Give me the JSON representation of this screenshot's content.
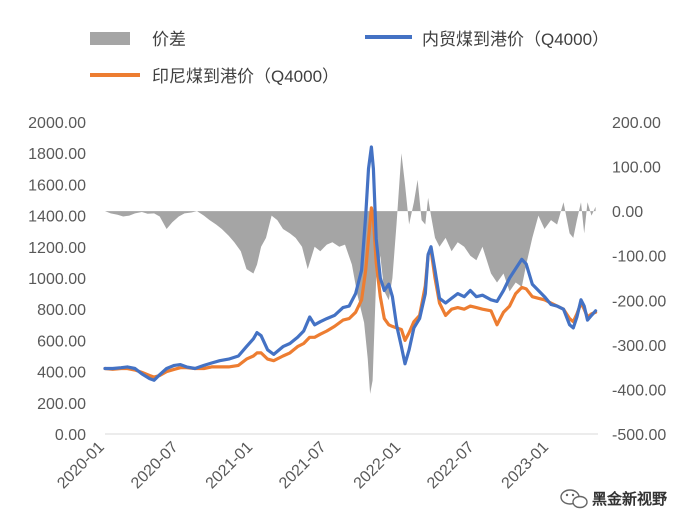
{
  "chart_data": {
    "type": "line",
    "legend": [
      {
        "name": "价差",
        "kind": "area",
        "color": "#a5a5a5"
      },
      {
        "name": "内贸煤到港价（Q4000）",
        "kind": "line",
        "color": "#4472c4"
      },
      {
        "name": "印尼煤到港价（Q4000）",
        "kind": "line",
        "color": "#ed7d31"
      }
    ],
    "left_axis": {
      "ylim": [
        0,
        2000
      ],
      "ticks": [
        "0.00",
        "200.00",
        "400.00",
        "600.00",
        "800.00",
        "1000.00",
        "1200.00",
        "1400.00",
        "1600.00",
        "1800.00",
        "2000.00"
      ]
    },
    "right_axis": {
      "ylim": [
        -500,
        200
      ],
      "ticks": [
        "-500.00",
        "-400.00",
        "-300.00",
        "-200.00",
        "-100.00",
        "0.00",
        "100.00",
        "200.00"
      ]
    },
    "x_axis": {
      "range": [
        "2020-01",
        "2023-05"
      ],
      "ticks": [
        "2020-01",
        "2020-07",
        "2021-01",
        "2021-07",
        "2022-01",
        "2022-07",
        "2023-01"
      ]
    },
    "series": [
      {
        "name": "内贸煤到港价（Q4000）",
        "axis": "left",
        "color": "#4472c4",
        "points": [
          [
            "2020-01-01",
            420
          ],
          [
            "2020-01-20",
            420
          ],
          [
            "2020-02-10",
            425
          ],
          [
            "2020-02-25",
            430
          ],
          [
            "2020-03-15",
            420
          ],
          [
            "2020-04-01",
            385
          ],
          [
            "2020-04-20",
            355
          ],
          [
            "2020-05-01",
            345
          ],
          [
            "2020-05-15",
            380
          ],
          [
            "2020-06-01",
            420
          ],
          [
            "2020-06-20",
            440
          ],
          [
            "2020-07-05",
            445
          ],
          [
            "2020-07-20",
            430
          ],
          [
            "2020-08-10",
            420
          ],
          [
            "2020-09-01",
            440
          ],
          [
            "2020-09-20",
            455
          ],
          [
            "2020-10-10",
            470
          ],
          [
            "2020-11-01",
            480
          ],
          [
            "2020-11-25",
            500
          ],
          [
            "2020-12-15",
            560
          ],
          [
            "2021-01-01",
            610
          ],
          [
            "2021-01-10",
            650
          ],
          [
            "2021-01-20",
            630
          ],
          [
            "2021-02-05",
            540
          ],
          [
            "2021-02-20",
            510
          ],
          [
            "2021-03-15",
            560
          ],
          [
            "2021-04-01",
            580
          ],
          [
            "2021-04-20",
            620
          ],
          [
            "2021-05-05",
            660
          ],
          [
            "2021-05-20",
            750
          ],
          [
            "2021-06-01",
            700
          ],
          [
            "2021-06-15",
            720
          ],
          [
            "2021-07-01",
            740
          ],
          [
            "2021-07-20",
            760
          ],
          [
            "2021-08-10",
            810
          ],
          [
            "2021-08-25",
            820
          ],
          [
            "2021-09-10",
            900
          ],
          [
            "2021-09-25",
            1050
          ],
          [
            "2021-10-05",
            1400
          ],
          [
            "2021-10-12",
            1700
          ],
          [
            "2021-10-19",
            1840
          ],
          [
            "2021-10-24",
            1700
          ],
          [
            "2021-10-31",
            1250
          ],
          [
            "2021-11-10",
            1000
          ],
          [
            "2021-11-20",
            920
          ],
          [
            "2021-12-01",
            960
          ],
          [
            "2021-12-10",
            880
          ],
          [
            "2021-12-20",
            700
          ],
          [
            "2022-01-01",
            560
          ],
          [
            "2022-01-10",
            450
          ],
          [
            "2022-01-20",
            540
          ],
          [
            "2022-02-01",
            680
          ],
          [
            "2022-02-15",
            740
          ],
          [
            "2022-03-01",
            900
          ],
          [
            "2022-03-08",
            1150
          ],
          [
            "2022-03-15",
            1200
          ],
          [
            "2022-03-25",
            1050
          ],
          [
            "2022-04-05",
            870
          ],
          [
            "2022-04-20",
            840
          ],
          [
            "2022-05-05",
            870
          ],
          [
            "2022-05-20",
            900
          ],
          [
            "2022-06-05",
            880
          ],
          [
            "2022-06-20",
            920
          ],
          [
            "2022-07-05",
            880
          ],
          [
            "2022-07-20",
            890
          ],
          [
            "2022-08-10",
            860
          ],
          [
            "2022-08-25",
            850
          ],
          [
            "2022-09-10",
            920
          ],
          [
            "2022-09-25",
            1000
          ],
          [
            "2022-10-10",
            1060
          ],
          [
            "2022-10-25",
            1120
          ],
          [
            "2022-11-05",
            1090
          ],
          [
            "2022-11-20",
            960
          ],
          [
            "2022-12-05",
            920
          ],
          [
            "2022-12-20",
            880
          ],
          [
            "2023-01-05",
            830
          ],
          [
            "2023-01-20",
            820
          ],
          [
            "2023-02-05",
            800
          ],
          [
            "2023-02-20",
            700
          ],
          [
            "2023-03-01",
            680
          ],
          [
            "2023-03-10",
            750
          ],
          [
            "2023-03-20",
            860
          ],
          [
            "2023-03-28",
            820
          ],
          [
            "2023-04-05",
            730
          ],
          [
            "2023-04-15",
            760
          ],
          [
            "2023-04-25",
            790
          ]
        ]
      },
      {
        "name": "印尼煤到港价（Q4000）",
        "axis": "left",
        "color": "#ed7d31",
        "points": [
          [
            "2020-01-01",
            420
          ],
          [
            "2020-01-20",
            415
          ],
          [
            "2020-02-10",
            420
          ],
          [
            "2020-02-25",
            420
          ],
          [
            "2020-03-15",
            410
          ],
          [
            "2020-04-01",
            395
          ],
          [
            "2020-04-20",
            375
          ],
          [
            "2020-05-01",
            365
          ],
          [
            "2020-05-15",
            375
          ],
          [
            "2020-06-01",
            400
          ],
          [
            "2020-06-20",
            415
          ],
          [
            "2020-07-05",
            425
          ],
          [
            "2020-07-20",
            425
          ],
          [
            "2020-08-10",
            420
          ],
          [
            "2020-09-01",
            420
          ],
          [
            "2020-09-20",
            430
          ],
          [
            "2020-10-10",
            430
          ],
          [
            "2020-11-01",
            430
          ],
          [
            "2020-11-25",
            440
          ],
          [
            "2020-12-15",
            480
          ],
          [
            "2021-01-01",
            500
          ],
          [
            "2021-01-10",
            520
          ],
          [
            "2021-01-20",
            520
          ],
          [
            "2021-02-05",
            480
          ],
          [
            "2021-02-20",
            470
          ],
          [
            "2021-03-15",
            500
          ],
          [
            "2021-04-01",
            520
          ],
          [
            "2021-04-20",
            560
          ],
          [
            "2021-05-05",
            580
          ],
          [
            "2021-05-20",
            620
          ],
          [
            "2021-06-01",
            620
          ],
          [
            "2021-06-15",
            640
          ],
          [
            "2021-07-01",
            660
          ],
          [
            "2021-07-20",
            690
          ],
          [
            "2021-08-10",
            730
          ],
          [
            "2021-08-25",
            740
          ],
          [
            "2021-09-10",
            780
          ],
          [
            "2021-09-25",
            860
          ],
          [
            "2021-10-05",
            1050
          ],
          [
            "2021-10-12",
            1250
          ],
          [
            "2021-10-19",
            1450
          ],
          [
            "2021-10-24",
            1380
          ],
          [
            "2021-10-31",
            1100
          ],
          [
            "2021-11-10",
            880
          ],
          [
            "2021-11-20",
            740
          ],
          [
            "2021-12-01",
            700
          ],
          [
            "2021-12-10",
            690
          ],
          [
            "2021-12-20",
            680
          ],
          [
            "2022-01-01",
            670
          ],
          [
            "2022-01-10",
            600
          ],
          [
            "2022-01-20",
            650
          ],
          [
            "2022-02-01",
            720
          ],
          [
            "2022-02-15",
            760
          ],
          [
            "2022-03-01",
            950
          ],
          [
            "2022-03-08",
            1150
          ],
          [
            "2022-03-15",
            1180
          ],
          [
            "2022-03-25",
            1000
          ],
          [
            "2022-04-05",
            840
          ],
          [
            "2022-04-20",
            760
          ],
          [
            "2022-05-05",
            800
          ],
          [
            "2022-05-20",
            810
          ],
          [
            "2022-06-05",
            800
          ],
          [
            "2022-06-20",
            820
          ],
          [
            "2022-07-05",
            810
          ],
          [
            "2022-07-20",
            800
          ],
          [
            "2022-08-10",
            790
          ],
          [
            "2022-08-25",
            700
          ],
          [
            "2022-09-10",
            780
          ],
          [
            "2022-09-25",
            820
          ],
          [
            "2022-10-10",
            900
          ],
          [
            "2022-10-25",
            940
          ],
          [
            "2022-11-05",
            930
          ],
          [
            "2022-11-20",
            880
          ],
          [
            "2022-12-05",
            870
          ],
          [
            "2022-12-20",
            860
          ],
          [
            "2023-01-05",
            840
          ],
          [
            "2023-01-20",
            820
          ],
          [
            "2023-02-05",
            800
          ],
          [
            "2023-02-20",
            740
          ],
          [
            "2023-03-01",
            720
          ],
          [
            "2023-03-10",
            770
          ],
          [
            "2023-03-20",
            840
          ],
          [
            "2023-03-28",
            800
          ],
          [
            "2023-04-05",
            750
          ],
          [
            "2023-04-15",
            770
          ],
          [
            "2023-04-25",
            780
          ]
        ]
      },
      {
        "name": "价差",
        "axis": "right",
        "color": "#a5a5a5",
        "points": [
          [
            "2020-01-01",
            0
          ],
          [
            "2020-01-15",
            -5
          ],
          [
            "2020-02-01",
            -8
          ],
          [
            "2020-02-15",
            -12
          ],
          [
            "2020-03-01",
            -10
          ],
          [
            "2020-03-15",
            -5
          ],
          [
            "2020-04-01",
            -2
          ],
          [
            "2020-04-15",
            -6
          ],
          [
            "2020-05-01",
            -5
          ],
          [
            "2020-05-15",
            -12
          ],
          [
            "2020-06-01",
            -40
          ],
          [
            "2020-06-15",
            -25
          ],
          [
            "2020-07-01",
            -12
          ],
          [
            "2020-07-15",
            -5
          ],
          [
            "2020-08-01",
            -3
          ],
          [
            "2020-08-15",
            0
          ],
          [
            "2020-09-01",
            -10
          ],
          [
            "2020-09-15",
            -20
          ],
          [
            "2020-10-01",
            -30
          ],
          [
            "2020-10-15",
            -40
          ],
          [
            "2020-11-01",
            -55
          ],
          [
            "2020-11-15",
            -70
          ],
          [
            "2020-12-01",
            -90
          ],
          [
            "2020-12-15",
            -130
          ],
          [
            "2021-01-01",
            -140
          ],
          [
            "2021-01-10",
            -120
          ],
          [
            "2021-01-20",
            -80
          ],
          [
            "2021-02-01",
            -60
          ],
          [
            "2021-02-15",
            -10
          ],
          [
            "2021-03-01",
            -20
          ],
          [
            "2021-03-15",
            -40
          ],
          [
            "2021-04-01",
            -50
          ],
          [
            "2021-04-15",
            -60
          ],
          [
            "2021-05-01",
            -80
          ],
          [
            "2021-05-15",
            -130
          ],
          [
            "2021-06-01",
            -80
          ],
          [
            "2021-06-15",
            -90
          ],
          [
            "2021-07-01",
            -75
          ],
          [
            "2021-07-15",
            -70
          ],
          [
            "2021-08-01",
            -80
          ],
          [
            "2021-08-15",
            -75
          ],
          [
            "2021-09-01",
            -120
          ],
          [
            "2021-09-15",
            -190
          ],
          [
            "2021-10-01",
            -250
          ],
          [
            "2021-10-10",
            -330
          ],
          [
            "2021-10-16",
            -410
          ],
          [
            "2021-10-22",
            -380
          ],
          [
            "2021-10-31",
            -150
          ],
          [
            "2021-11-10",
            -100
          ],
          [
            "2021-11-20",
            -180
          ],
          [
            "2021-12-01",
            -200
          ],
          [
            "2021-12-10",
            -150
          ],
          [
            "2021-12-20",
            -30
          ],
          [
            "2022-01-01",
            130
          ],
          [
            "2022-01-10",
            60
          ],
          [
            "2022-01-20",
            -30
          ],
          [
            "2022-02-01",
            20
          ],
          [
            "2022-02-10",
            70
          ],
          [
            "2022-02-20",
            -20
          ],
          [
            "2022-03-01",
            -30
          ],
          [
            "2022-03-08",
            30
          ],
          [
            "2022-03-15",
            -10
          ],
          [
            "2022-03-25",
            -60
          ],
          [
            "2022-04-05",
            -80
          ],
          [
            "2022-04-20",
            -60
          ],
          [
            "2022-05-05",
            -90
          ],
          [
            "2022-05-20",
            -70
          ],
          [
            "2022-06-05",
            -80
          ],
          [
            "2022-06-20",
            -100
          ],
          [
            "2022-07-05",
            -110
          ],
          [
            "2022-07-20",
            -80
          ],
          [
            "2022-08-10",
            -140
          ],
          [
            "2022-08-25",
            -160
          ],
          [
            "2022-09-10",
            -140
          ],
          [
            "2022-09-25",
            -180
          ],
          [
            "2022-10-10",
            -160
          ],
          [
            "2022-10-25",
            -170
          ],
          [
            "2022-11-05",
            -120
          ],
          [
            "2022-11-20",
            -60
          ],
          [
            "2022-12-05",
            -10
          ],
          [
            "2022-12-20",
            -40
          ],
          [
            "2023-01-05",
            -20
          ],
          [
            "2023-01-20",
            -30
          ],
          [
            "2023-02-05",
            20
          ],
          [
            "2023-02-20",
            -50
          ],
          [
            "2023-03-01",
            -60
          ],
          [
            "2023-03-10",
            -20
          ],
          [
            "2023-03-20",
            20
          ],
          [
            "2023-03-28",
            -50
          ],
          [
            "2023-04-05",
            20
          ],
          [
            "2023-04-15",
            -10
          ],
          [
            "2023-04-25",
            10
          ]
        ]
      }
    ]
  },
  "watermark": {
    "text": "黑金新视野",
    "icon": "wechat-icon"
  }
}
